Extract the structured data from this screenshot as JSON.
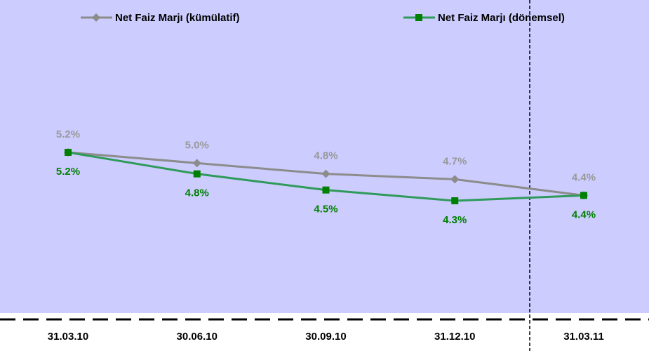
{
  "chart_data": {
    "type": "line",
    "categories": [
      "31.03.10",
      "30.06.10",
      "30.09.10",
      "31.12.10",
      "31.03.11"
    ],
    "series": [
      {
        "name": "Net Faiz Marjı (kümülatif)",
        "color": "#8c8c8c",
        "marker": "diamond",
        "values": [
          5.2,
          5.0,
          4.8,
          4.7,
          4.4
        ],
        "value_labels": [
          "5.2%",
          "5.0%",
          "4.8%",
          "4.7%",
          "4.4%"
        ]
      },
      {
        "name": "Net Faiz Marjı (dönemsel)",
        "color": "#2f9a5a",
        "marker": "square",
        "values": [
          5.2,
          4.8,
          4.5,
          4.3,
          4.4
        ],
        "value_labels": [
          "5.2%",
          "4.8%",
          "4.5%",
          "4.3%",
          "4.4%"
        ]
      }
    ]
  }
}
